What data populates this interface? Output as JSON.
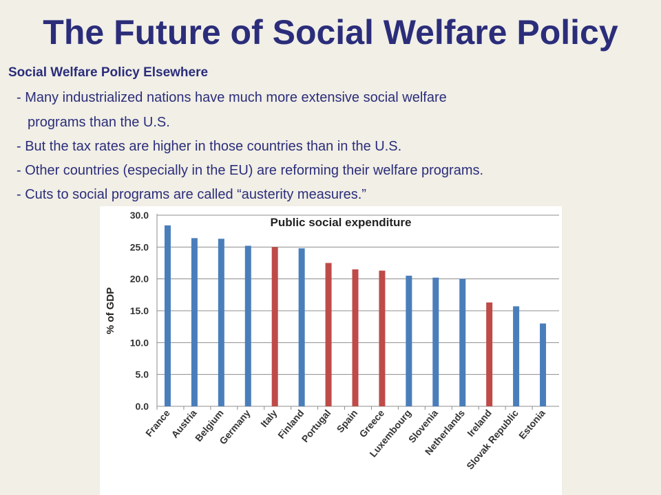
{
  "slide": {
    "title": "The Future of Social Welfare Policy",
    "subtitle": "Social Welfare Policy Elsewhere",
    "bullets": [
      "- Many industrialized nations have much more extensive social welfare",
      "programs than the U.S.",
      "- But the tax rates are higher in those countries than in the U.S.",
      "- Other countries (especially in the EU) are reforming their welfare programs.",
      "- Cuts to social programs are called “austerity measures.”"
    ]
  },
  "colors": {
    "title": "#2b2d7a",
    "background": "#f1efe6",
    "bar_blue": "#4a7ebb",
    "bar_red": "#be4b48"
  },
  "chart_data": {
    "type": "bar",
    "title": "Public social expenditure",
    "xlabel": "",
    "ylabel": "% of GDP",
    "ylim": [
      0,
      30
    ],
    "grid": true,
    "yticks": [
      "0.0",
      "5.0",
      "10.0",
      "15.0",
      "20.0",
      "25.0",
      "30.0"
    ],
    "categories": [
      "France",
      "Austria",
      "Belgium",
      "Germany",
      "Italy",
      "Finland",
      "Portugal",
      "Spain",
      "Greece",
      "Luxembourg",
      "Slovenia",
      "Netherlands",
      "Ireland",
      "Slovak Republic",
      "Estonia"
    ],
    "values": [
      28.4,
      26.4,
      26.3,
      25.2,
      25.0,
      24.8,
      22.5,
      21.5,
      21.3,
      20.5,
      20.2,
      20.0,
      16.3,
      15.7,
      13.0
    ],
    "bar_colors": [
      "blue",
      "blue",
      "blue",
      "blue",
      "red",
      "blue",
      "red",
      "red",
      "red",
      "blue",
      "blue",
      "blue",
      "red",
      "blue",
      "blue"
    ]
  }
}
